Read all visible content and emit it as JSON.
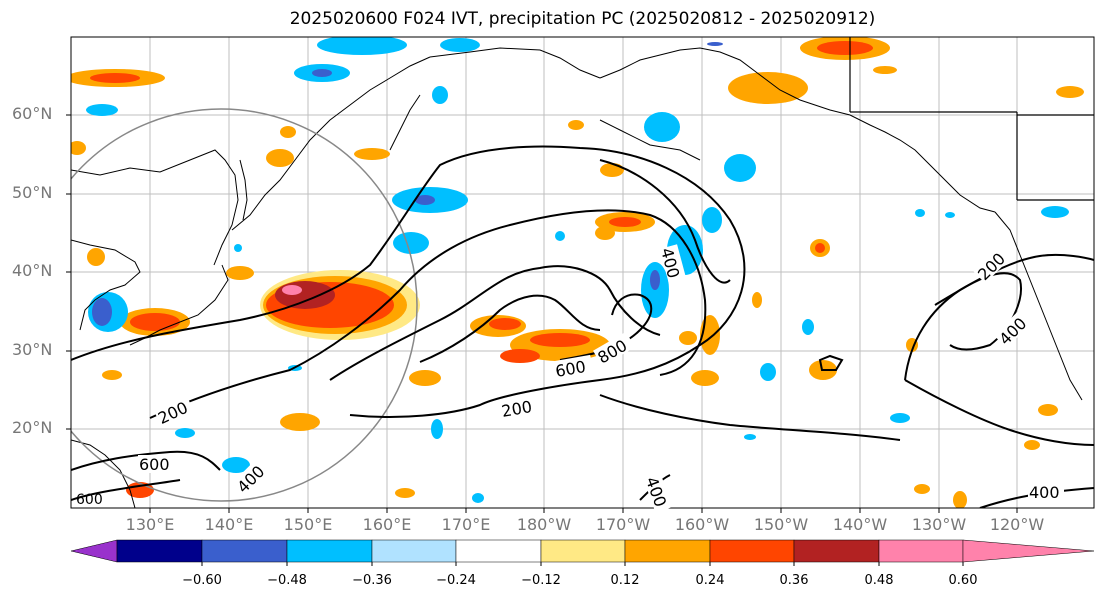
{
  "title": "2025020600 F024 IVT, precipitation PC (2025020812 - 2025020912)",
  "lat_labels": [
    "60°N",
    "50°N",
    "40°N",
    "30°N",
    "20°N"
  ],
  "lon_labels": [
    "130°E",
    "140°E",
    "150°E",
    "160°E",
    "170°E",
    "180°W",
    "170°W",
    "160°W",
    "150°W",
    "140°W",
    "130°W",
    "120°W"
  ],
  "contour_labels": [
    "200",
    "200",
    "200",
    "400",
    "400",
    "400",
    "400",
    "400",
    "600",
    "600",
    "800",
    "600"
  ],
  "colorbar": {
    "ticks": [
      "−0.60",
      "−0.48",
      "−0.36",
      "−0.24",
      "−0.12",
      "0.12",
      "0.24",
      "0.36",
      "0.48",
      "0.60"
    ],
    "colors": [
      "#9932cc",
      "#00008b",
      "#3a5fcd",
      "#00bfff",
      "#b0e2ff",
      "#ffffff",
      "#ffe985",
      "#ffa500",
      "#ff4500",
      "#b22222",
      "#ff82ab"
    ]
  }
}
